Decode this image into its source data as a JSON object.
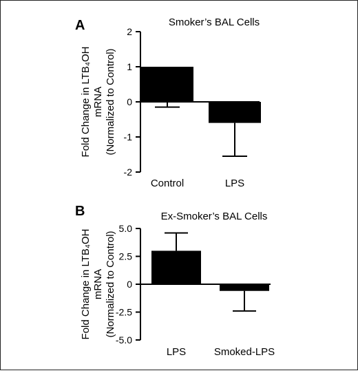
{
  "chart_data": [
    {
      "type": "bar",
      "panel": "A",
      "title": "Smoker’s BAL Cells",
      "ylabel_lines": [
        "Fold Change in LTB₄OH",
        "mRNA",
        "(Normalized to Control)"
      ],
      "categories": [
        "Control",
        "LPS"
      ],
      "values": [
        1.0,
        -0.6
      ],
      "error_high": [
        -0.15,
        -1.55
      ],
      "ylim": [
        -2,
        2
      ],
      "yticks": [
        "2",
        "1",
        "0",
        "-1",
        "-2"
      ],
      "ytick_values": [
        2,
        1,
        0,
        -1,
        -2
      ],
      "grid": false,
      "legend": "none",
      "bar_color": "#000000"
    },
    {
      "type": "bar",
      "panel": "B",
      "title": "Ex-Smoker’s BAL Cells",
      "ylabel_lines": [
        "Fold Change in LTB₄OH",
        "mRNA",
        "(Normalized to Control)"
      ],
      "categories": [
        "LPS",
        "Smoked-LPS"
      ],
      "values": [
        3.0,
        -0.6
      ],
      "error_high": [
        4.6,
        -2.4
      ],
      "ylim": [
        -5.0,
        5.0
      ],
      "yticks": [
        "5.0",
        "2.5",
        "0",
        "-2.5",
        "-5.0"
      ],
      "ytick_values": [
        5.0,
        2.5,
        0,
        -2.5,
        -5.0
      ],
      "grid": false,
      "legend": "none",
      "bar_color": "#000000"
    }
  ]
}
